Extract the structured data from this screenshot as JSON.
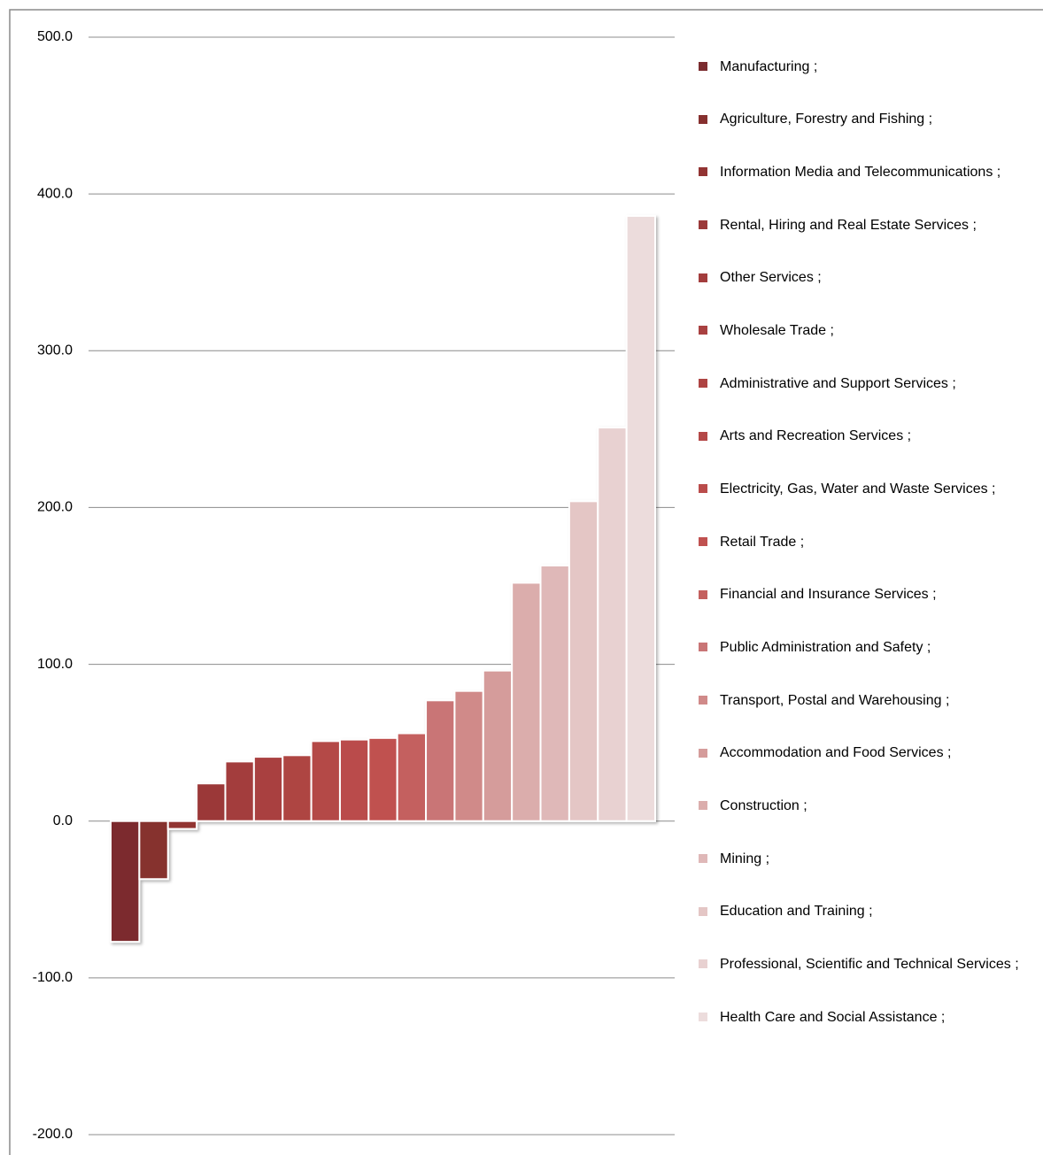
{
  "chart_data": {
    "type": "bar",
    "categories": [
      null
    ],
    "series": [
      {
        "name": "Manufacturing ;",
        "color": "#7b2c2f",
        "values": [
          -77
        ]
      },
      {
        "name": "Agriculture, Forestry and Fishing ;",
        "color": "#86302f",
        "values": [
          -37
        ]
      },
      {
        "name": "Information Media and Telecommunications ;",
        "color": "#923433",
        "values": [
          -5
        ]
      },
      {
        "name": "Rental, Hiring and Real Estate Services ;",
        "color": "#9b3939",
        "values": [
          24
        ]
      },
      {
        "name": "Other Services ;",
        "color": "#a33d3d",
        "values": [
          38
        ]
      },
      {
        "name": "Wholesale Trade ;",
        "color": "#a94141",
        "values": [
          41
        ]
      },
      {
        "name": "Administrative and Support Services ;",
        "color": "#ae4443",
        "values": [
          42
        ]
      },
      {
        "name": "Arts and Recreation Services ;",
        "color": "#b44847",
        "values": [
          51
        ]
      },
      {
        "name": "Electricity, Gas, Water and Waste Services ;",
        "color": "#ba4c4b",
        "values": [
          52
        ]
      },
      {
        "name": "Retail Trade ;",
        "color": "#c05150",
        "values": [
          53
        ]
      },
      {
        "name": "Financial and Insurance Services ;",
        "color": "#c4605e",
        "values": [
          56
        ]
      },
      {
        "name": "Public Administration and Safety ;",
        "color": "#c97576",
        "values": [
          77
        ]
      },
      {
        "name": "Transport, Postal and Warehousing ;",
        "color": "#d08a89",
        "values": [
          83
        ]
      },
      {
        "name": "Accommodation and Food Services ;",
        "color": "#d59c9b",
        "values": [
          96
        ]
      },
      {
        "name": "Construction ;",
        "color": "#dbadac",
        "values": [
          152
        ]
      },
      {
        "name": "Mining ;",
        "color": "#dfb8b8",
        "values": [
          163
        ]
      },
      {
        "name": "Education and Training ;",
        "color": "#e4c6c5",
        "values": [
          204
        ]
      },
      {
        "name": "Professional, Scientific and Technical Services ;",
        "color": "#e8d1d1",
        "values": [
          251
        ]
      },
      {
        "name": "Health Care and Social Assistance ;",
        "color": "#ecdcdc",
        "values": [
          386
        ]
      }
    ],
    "ylim": [
      -200,
      500
    ],
    "yticks": [
      {
        "value": -200,
        "label": "-200.0"
      },
      {
        "value": -100,
        "label": "-100.0"
      },
      {
        "value": 0,
        "label": "0.0"
      },
      {
        "value": 100,
        "label": "100.0"
      },
      {
        "value": 200,
        "label": "200.0"
      },
      {
        "value": 300,
        "label": "300.0"
      },
      {
        "value": 400,
        "label": "400.0"
      },
      {
        "value": 500,
        "label": "500.0"
      }
    ],
    "grid": true,
    "legend": "right"
  }
}
